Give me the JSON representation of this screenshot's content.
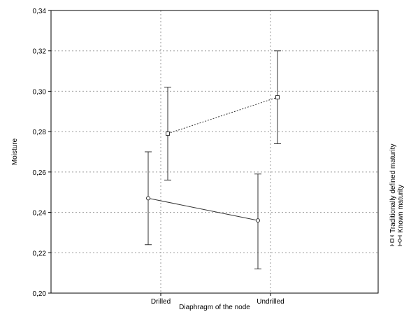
{
  "chart_data": {
    "type": "line",
    "title": "",
    "xlabel": "Diaphragm of the node",
    "ylabel": "Moisture",
    "categories": [
      "Drilled",
      "Undrilled"
    ],
    "ylim": [
      0.2,
      0.34
    ],
    "yticks": [
      "0,20",
      "0,22",
      "0,24",
      "0,26",
      "0,28",
      "0,30",
      "0,32",
      "0,34"
    ],
    "grid": true,
    "legend_position": "right",
    "series": [
      {
        "name": "Known maturity",
        "values": [
          0.247,
          0.236
        ],
        "error_low": [
          0.224,
          0.212
        ],
        "error_high": [
          0.27,
          0.259
        ],
        "line_style": "solid",
        "marker": "circle"
      },
      {
        "name": "Traditionally defined maturity",
        "values": [
          0.279,
          0.297
        ],
        "error_low": [
          0.256,
          0.274
        ],
        "error_high": [
          0.302,
          0.32
        ],
        "line_style": "dotted",
        "marker": "square"
      }
    ]
  }
}
